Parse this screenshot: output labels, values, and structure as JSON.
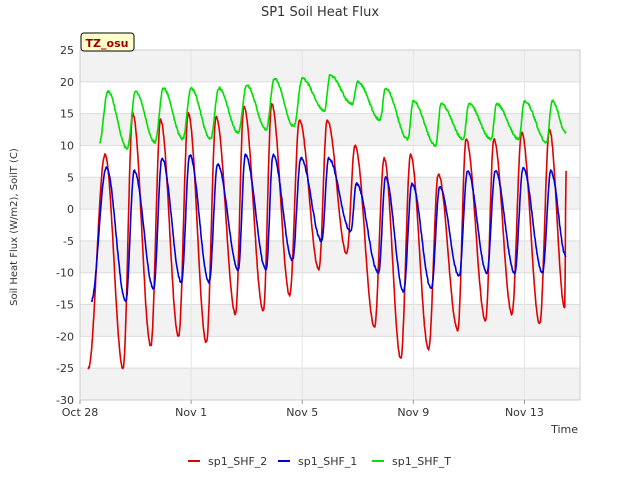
{
  "chart_data": {
    "type": "line",
    "title": "SP1 Soil Heat Flux",
    "xlabel": "Time",
    "ylabel": "Soil Heat Flux (W/m2), SoilT (C)",
    "badge": "TZ_osu",
    "xlim": [
      0,
      18
    ],
    "ylim": [
      -30,
      25
    ],
    "x_ticks": [
      {
        "day": 0,
        "label": "Oct 28"
      },
      {
        "day": 4,
        "label": "Nov 1"
      },
      {
        "day": 8,
        "label": "Nov 5"
      },
      {
        "day": 12,
        "label": "Nov 9"
      },
      {
        "day": 16,
        "label": "Nov 13"
      }
    ],
    "y_ticks": [
      -30,
      -25,
      -20,
      -15,
      -10,
      -5,
      0,
      5,
      10,
      15,
      20,
      25
    ],
    "legend_position": "bottom",
    "series": [
      {
        "name": "sp1_SHF_2",
        "color": "#e00000",
        "min_times": [
          0.3,
          1.55,
          2.55,
          3.55,
          4.55,
          5.6,
          6.6,
          7.55,
          8.6,
          9.6,
          10.6,
          11.55,
          12.55,
          13.6,
          14.6,
          15.55,
          16.55,
          17.45
        ],
        "max_times": [
          0.9,
          1.9,
          2.9,
          3.9,
          4.9,
          5.9,
          6.9,
          7.9,
          8.9,
          9.9,
          10.95,
          11.9,
          12.9,
          13.9,
          14.9,
          15.9,
          16.9,
          17.5
        ],
        "peaks": [
          8.5,
          15.0,
          14.0,
          15.0,
          14.5,
          16.0,
          16.5,
          14.0,
          14.0,
          10.0,
          8.0,
          8.5,
          5.5,
          11.0,
          11.0,
          12.0,
          12.5,
          6.0
        ],
        "troughs": [
          -25.0,
          -25.0,
          -21.5,
          -20.0,
          -21.0,
          -16.5,
          -16.0,
          -13.5,
          -9.5,
          -7.0,
          -18.5,
          -23.5,
          -22.0,
          -19.0,
          -17.5,
          -16.5,
          -18.0,
          -15.5
        ]
      },
      {
        "name": "sp1_SHF_1",
        "color": "#0000dd",
        "min_times": [
          0.4,
          1.65,
          2.65,
          3.65,
          4.65,
          5.7,
          6.7,
          7.65,
          8.7,
          9.75,
          10.75,
          11.65,
          12.65,
          13.65,
          14.65,
          15.65,
          16.65,
          17.5
        ],
        "max_times": [
          0.95,
          1.95,
          2.95,
          3.95,
          4.95,
          5.95,
          6.95,
          7.95,
          8.95,
          9.95,
          11.0,
          11.95,
          12.95,
          13.95,
          14.95,
          15.95,
          16.95,
          17.5
        ],
        "peaks": [
          6.5,
          6.0,
          8.0,
          8.5,
          7.0,
          8.5,
          8.5,
          8.0,
          8.0,
          4.0,
          5.0,
          4.0,
          3.5,
          6.0,
          6.0,
          6.5,
          6.0,
          3.5
        ],
        "troughs": [
          -14.5,
          -14.5,
          -12.5,
          -11.5,
          -11.5,
          -9.5,
          -9.5,
          -8.0,
          -5.0,
          -3.5,
          -10.0,
          -13.0,
          -12.5,
          -10.5,
          -10.0,
          -10.0,
          -10.0,
          -7.5
        ]
      },
      {
        "name": "sp1_SHF_T",
        "color": "#00e000",
        "min_times": [
          0.7,
          1.7,
          2.7,
          3.7,
          4.7,
          5.7,
          6.7,
          7.7,
          8.8,
          9.8,
          10.8,
          11.8,
          12.8,
          13.8,
          14.8,
          15.8,
          16.8,
          17.5
        ],
        "max_times": [
          1.0,
          2.0,
          3.0,
          4.0,
          5.0,
          6.0,
          7.0,
          8.0,
          9.0,
          10.0,
          11.0,
          12.0,
          13.0,
          14.0,
          15.0,
          16.0,
          17.0,
          17.5
        ],
        "peaks": [
          18.5,
          18.5,
          19.0,
          19.0,
          19.0,
          19.5,
          20.5,
          20.5,
          21.0,
          20.0,
          19.0,
          17.0,
          16.5,
          16.5,
          16.5,
          17.0,
          17.0,
          14.0
        ],
        "troughs": [
          10.5,
          9.5,
          10.5,
          11.0,
          11.0,
          12.0,
          12.5,
          13.0,
          15.5,
          16.5,
          14.0,
          11.0,
          10.0,
          11.0,
          11.0,
          11.0,
          10.5,
          12.0
        ]
      }
    ]
  }
}
